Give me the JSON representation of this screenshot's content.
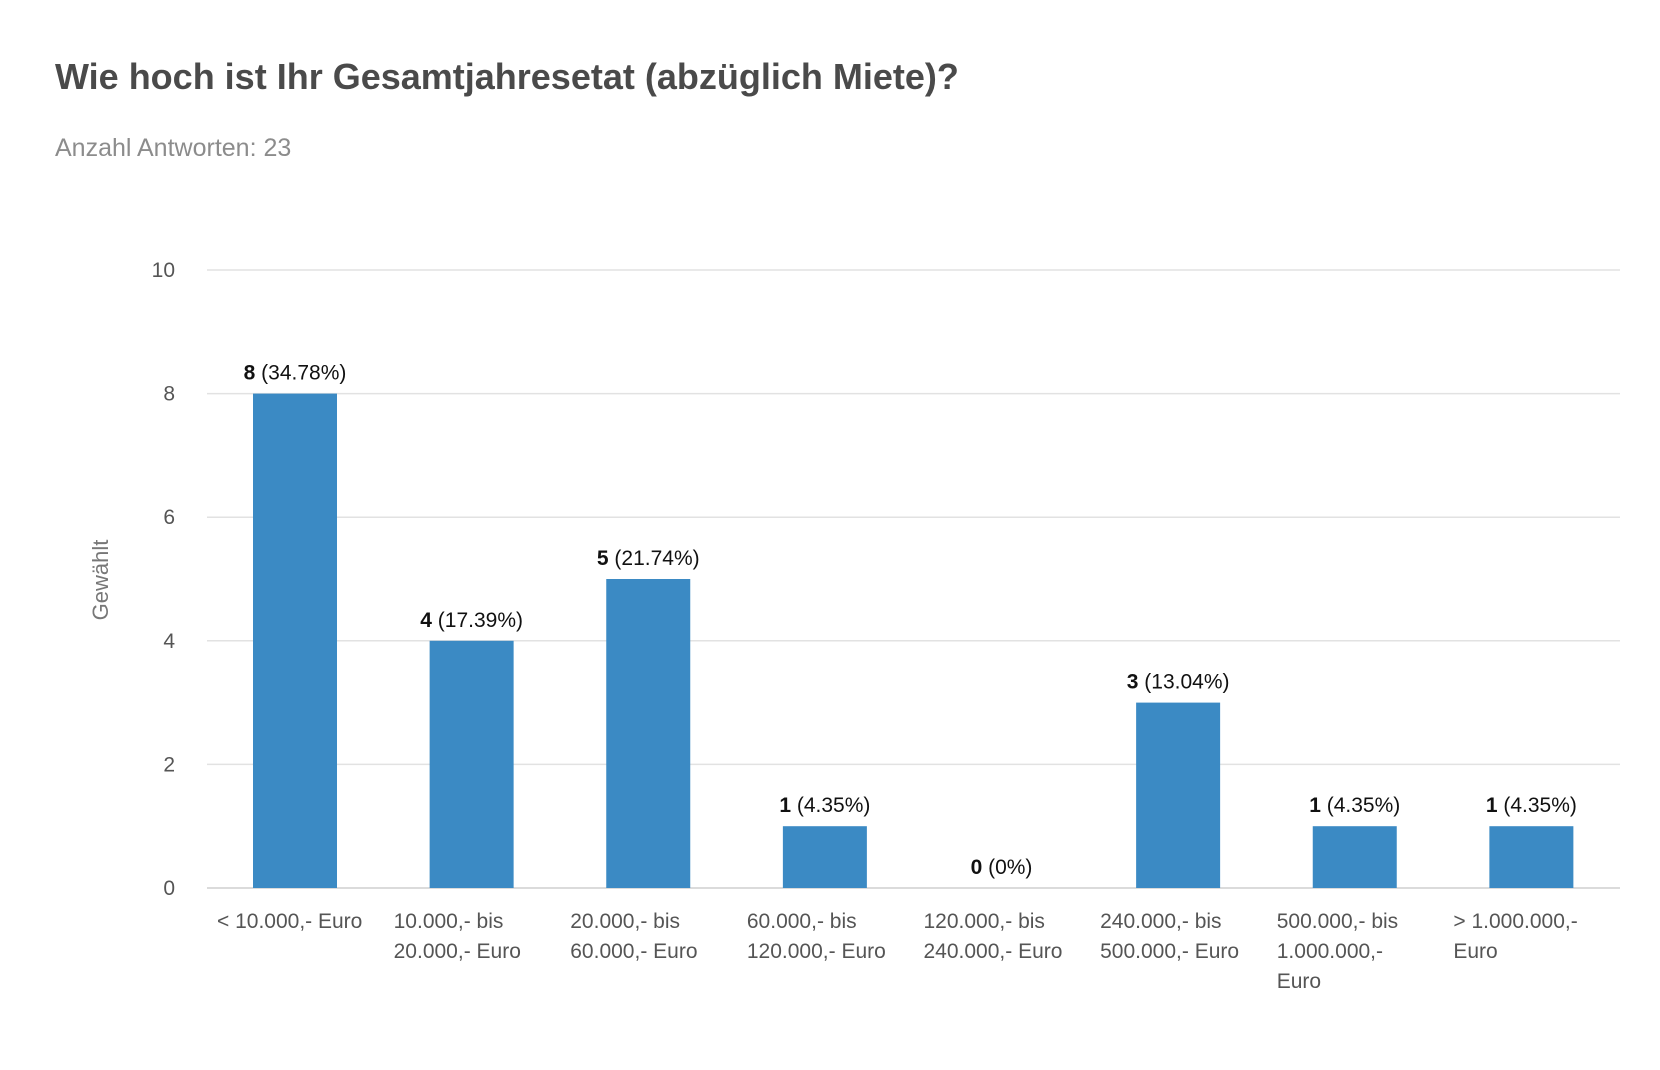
{
  "chart_data": {
    "type": "bar",
    "title": "Wie hoch ist Ihr Gesamtjahresetat (abzüglich Miete)?",
    "subtitle": "Anzahl Antworten: 23",
    "xlabel": "",
    "ylabel": "Gewählt",
    "ylim": [
      0,
      10
    ],
    "yticks": [
      "0",
      "2",
      "4",
      "6",
      "8",
      "10"
    ],
    "grid": true,
    "legend": "none",
    "bar_color": "#3b8ac4",
    "categories": [
      [
        "< 10.000,- Euro"
      ],
      [
        "10.000,- bis",
        "20.000,- Euro"
      ],
      [
        "20.000,- bis",
        "60.000,- Euro"
      ],
      [
        "60.000,- bis",
        "120.000,- Euro"
      ],
      [
        "120.000,- bis",
        "240.000,- Euro"
      ],
      [
        "240.000,- bis",
        "500.000,- Euro"
      ],
      [
        "500.000,- bis",
        "1.000.000,-",
        "Euro"
      ],
      [
        "> 1.000.000,-",
        "Euro"
      ]
    ],
    "values": [
      8,
      4,
      5,
      1,
      0,
      3,
      1,
      1
    ],
    "data_labels": [
      {
        "count": "8",
        "pct": " (34.78%)"
      },
      {
        "count": "4",
        "pct": " (17.39%)"
      },
      {
        "count": "5",
        "pct": " (21.74%)"
      },
      {
        "count": "1",
        "pct": " (4.35%)"
      },
      {
        "count": "0",
        "pct": " (0%)"
      },
      {
        "count": "3",
        "pct": " (13.04%)"
      },
      {
        "count": "1",
        "pct": " (4.35%)"
      },
      {
        "count": "1",
        "pct": " (4.35%)"
      }
    ]
  }
}
